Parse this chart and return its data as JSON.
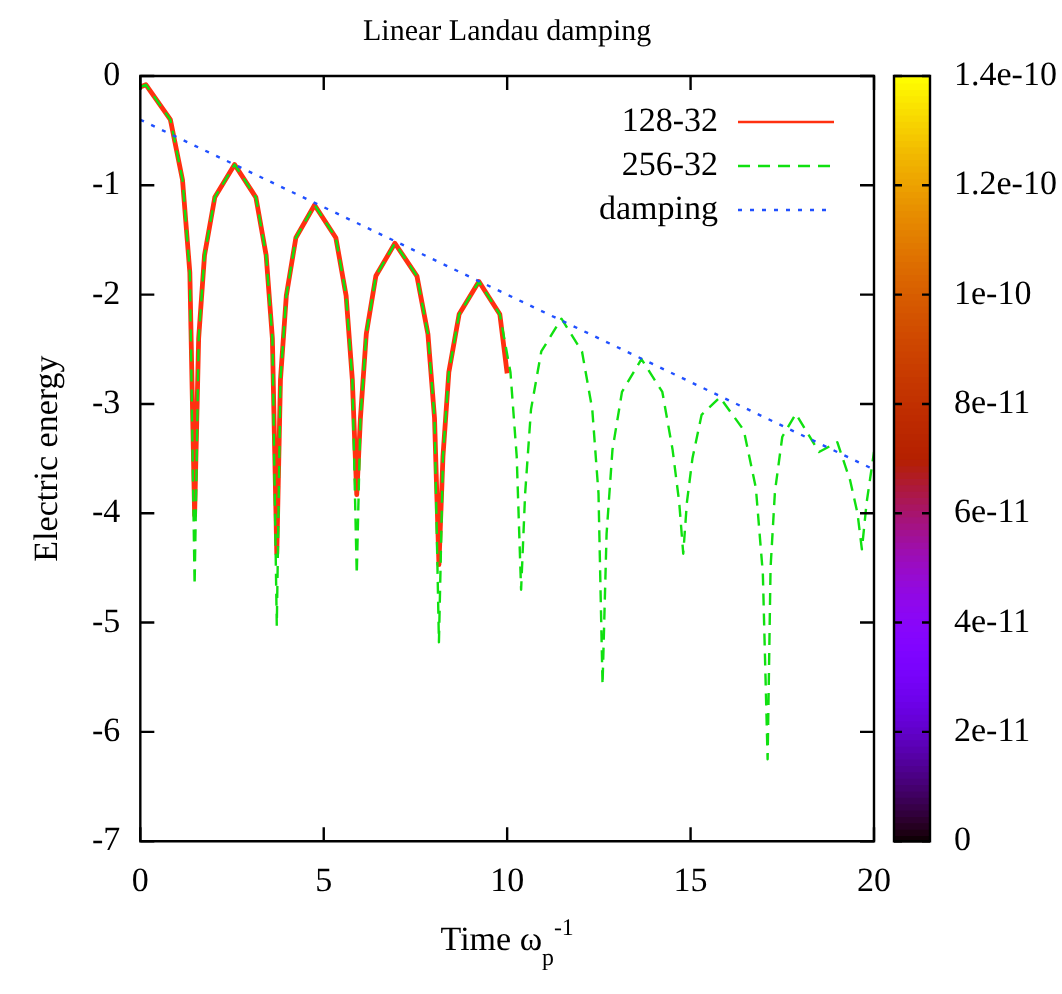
{
  "chart_data": {
    "type": "line",
    "title": "Linear Landau damping",
    "xlabel": "Time ω$_{p}$$^{-1}$",
    "ylabel": "Electric energy",
    "xlim": [
      0,
      20
    ],
    "xticks": [
      0,
      5,
      10,
      15,
      20
    ],
    "ylim": [
      -7,
      0
    ],
    "yticks": [
      0,
      -1,
      -2,
      -3,
      -4,
      -5,
      -6,
      -7
    ],
    "clim": [
      0,
      1.4e-10
    ],
    "cticks": [
      {
        "value": 0,
        "label": "0"
      },
      {
        "value": 2e-11,
        "label": "2e-11"
      },
      {
        "value": 4e-11,
        "label": "4e-11"
      },
      {
        "value": 6e-11,
        "label": "6e-11"
      },
      {
        "value": 8e-11,
        "label": "8e-11"
      },
      {
        "value": 1e-10,
        "label": "1e-10"
      },
      {
        "value": 1.2e-10,
        "label": "1.2e-10"
      },
      {
        "value": 1.4e-10,
        "label": "1.4e-10"
      }
    ],
    "grid": false,
    "legend": "top right",
    "marker": "none",
    "series": [
      {
        "name": "128-32",
        "color": "#ff3010",
        "line_style": "solid",
        "x": [
          0,
          0.15,
          0.82,
          1.15,
          1.35,
          1.48,
          1.59,
          1.75,
          2.03,
          2.57,
          3.15,
          3.43,
          3.6,
          3.72,
          3.82,
          3.98,
          4.24,
          4.75,
          5.33,
          5.61,
          5.78,
          5.9,
          6.0,
          6.16,
          6.42,
          6.94,
          7.54,
          7.84,
          8.02,
          8.14,
          8.25,
          8.41,
          8.69,
          9.23,
          9.8,
          10.0
        ],
        "values": [
          -0.1,
          -0.08,
          -0.4,
          -0.95,
          -1.8,
          -4.02,
          -2.4,
          -1.64,
          -1.11,
          -0.81,
          -1.11,
          -1.64,
          -2.4,
          -4.37,
          -2.78,
          -2.01,
          -1.48,
          -1.18,
          -1.48,
          -2.01,
          -2.78,
          -3.83,
          -3.13,
          -2.36,
          -1.83,
          -1.53,
          -1.83,
          -2.36,
          -3.13,
          -4.47,
          -3.48,
          -2.71,
          -2.18,
          -1.88,
          -2.18,
          -2.72
        ]
      },
      {
        "name": "256-32",
        "color": "#10e010",
        "line_style": "dashed",
        "x": [
          0,
          0.15,
          0.82,
          1.15,
          1.35,
          1.48,
          1.59,
          1.75,
          2.03,
          2.57,
          3.15,
          3.43,
          3.6,
          3.72,
          3.82,
          3.98,
          4.24,
          4.75,
          5.33,
          5.61,
          5.78,
          5.9,
          6.0,
          6.16,
          6.42,
          6.94,
          7.54,
          7.84,
          8.02,
          8.14,
          8.25,
          8.41,
          8.69,
          9.23,
          9.8,
          10.09,
          10.26,
          10.38,
          10.49,
          10.65,
          10.93,
          11.48,
          12.04,
          12.32,
          12.49,
          12.6,
          12.71,
          12.87,
          13.13,
          13.66,
          14.23,
          14.51,
          14.69,
          14.8,
          14.9,
          15.05,
          15.3,
          15.8,
          16.45,
          16.78,
          16.97,
          17.1,
          17.18,
          17.3,
          17.5,
          17.87,
          18.5,
          19.0,
          19.35,
          19.55,
          19.67,
          19.8,
          20
        ],
        "values": [
          -0.1,
          -0.08,
          -0.4,
          -0.95,
          -1.8,
          -4.66,
          -2.4,
          -1.64,
          -1.11,
          -0.81,
          -1.11,
          -1.64,
          -2.4,
          -5.03,
          -2.78,
          -2.01,
          -1.48,
          -1.18,
          -1.48,
          -2.01,
          -2.78,
          -4.56,
          -3.13,
          -2.36,
          -1.83,
          -1.53,
          -1.83,
          -2.36,
          -3.13,
          -5.18,
          -3.48,
          -2.71,
          -2.18,
          -1.88,
          -2.18,
          -2.71,
          -3.48,
          -4.7,
          -3.82,
          -3.05,
          -2.52,
          -2.22,
          -2.52,
          -3.05,
          -3.82,
          -5.57,
          -4.19,
          -3.42,
          -2.89,
          -2.59,
          -2.89,
          -3.42,
          -3.9,
          -4.37,
          -3.9,
          -3.5,
          -3.1,
          -2.94,
          -3.24,
          -3.77,
          -4.55,
          -6.25,
          -4.5,
          -3.8,
          -3.3,
          -3.09,
          -3.44,
          -3.35,
          -3.7,
          -4.0,
          -4.33,
          -3.9,
          -3.44
        ]
      },
      {
        "name": "damping",
        "color": "#2050ff",
        "line_style": "dotted",
        "x": [
          0,
          20
        ],
        "values": [
          -0.4,
          -3.6
        ]
      }
    ]
  }
}
